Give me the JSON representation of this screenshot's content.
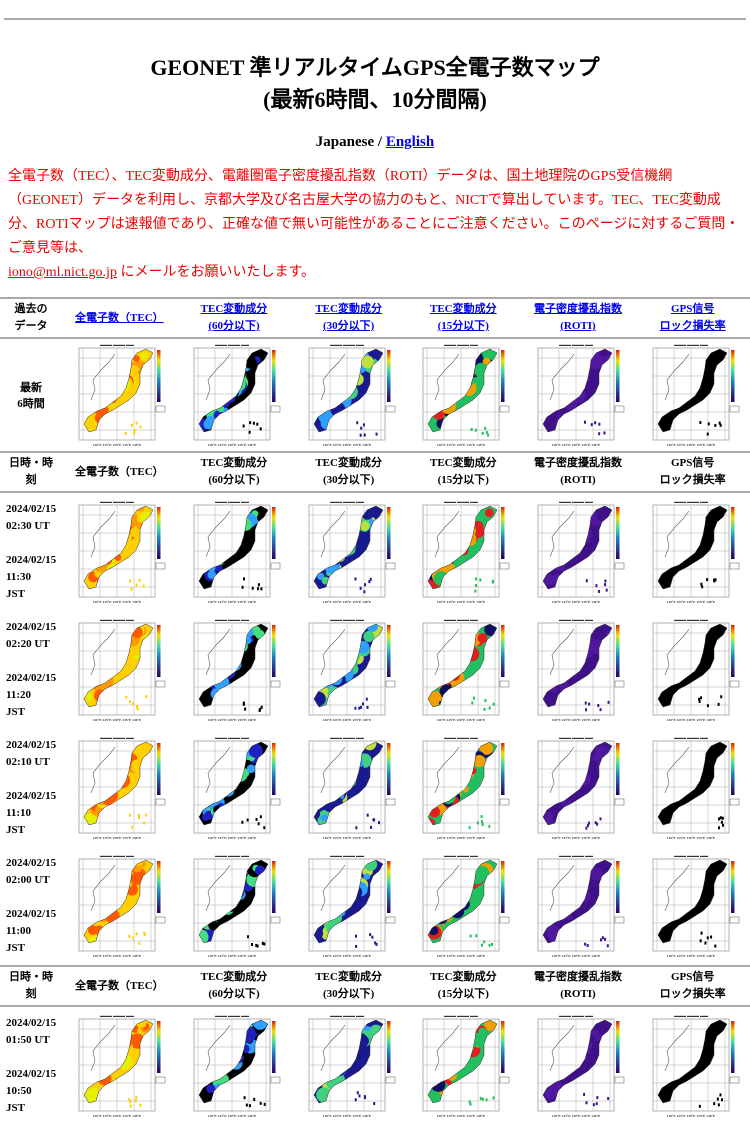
{
  "title": {
    "line1": "GEONET 準リアルタイムGPS全電子数マップ",
    "line2": "(最新6時間、10分間隔)"
  },
  "lang": {
    "japanese": "Japanese",
    "sep": " / ",
    "english": "English"
  },
  "notice": {
    "text": "全電子数（TEC）、TEC変動成分、電離圏電子密度擾乱指数（ROTI）データは、国土地理院のGPS受信機網（GEONET）データを利用し、京都大学及び名古屋大学の協力のもと、NICTで算出しています。TEC、TEC変動成分、ROTIマップは速報値であり、正確な値で無い可能性があることにご注意ください。このページに対するご質問・ご意見等は、",
    "email": "iono@ml.nict.go.jp",
    "suffix": " にメールをお願いいたします。"
  },
  "link_header": {
    "first": [
      "過去の",
      "データ"
    ],
    "cols": [
      [
        "全電子数（TEC）"
      ],
      [
        "TEC変動成分",
        "(60分以下)"
      ],
      [
        "TEC変動成分",
        "(30分以下)"
      ],
      [
        "TEC変動成分",
        "(15分以下)"
      ],
      [
        "電子密度擾乱指数",
        "(ROTI)"
      ],
      [
        "GPS信号",
        "ロック損失率"
      ]
    ]
  },
  "plain_header": {
    "first": [
      "日時・時",
      "刻"
    ],
    "cols": [
      [
        "全電子数（TEC）"
      ],
      [
        "TEC変動成分",
        "(60分以下)"
      ],
      [
        "TEC変動成分",
        "(30分以下)"
      ],
      [
        "TEC変動成分",
        "(15分以下)"
      ],
      [
        "電子密度擾乱指数",
        "(ROTI)"
      ],
      [
        "GPS信号",
        "ロック損失率"
      ]
    ]
  },
  "latest_label": [
    "最新",
    "6時間"
  ],
  "rows": [
    {
      "ut_date": "2024/02/15",
      "ut_time": "02:30 UT",
      "jst_date": "2024/02/15",
      "jst_time": "11:30",
      "jst": "JST"
    },
    {
      "ut_date": "2024/02/15",
      "ut_time": "02:20 UT",
      "jst_date": "2024/02/15",
      "jst_time": "11:20",
      "jst": "JST"
    },
    {
      "ut_date": "2024/02/15",
      "ut_time": "02:10 UT",
      "jst_date": "2024/02/15",
      "jst_time": "11:10",
      "jst": "JST"
    },
    {
      "ut_date": "2024/02/15",
      "ut_time": "02:00 UT",
      "jst_date": "2024/02/15",
      "jst_time": "11:00",
      "jst": "JST"
    },
    {
      "ut_date": "2024/02/15",
      "ut_time": "01:50 UT",
      "jst_date": "2024/02/15",
      "jst_time": "10:50",
      "jst": "JST"
    }
  ],
  "map_colors": {
    "tec": [
      "#ffd000",
      "#ff9a00",
      "#ff5a00",
      "#e4f000"
    ],
    "dtec60": [
      "#000000",
      "#2020c0",
      "#30a0ff",
      "#40e080"
    ],
    "dtec30": [
      "#1a1a90",
      "#30a0ff",
      "#40d080",
      "#c0e040"
    ],
    "dtec15": [
      "#20c060",
      "#e02020",
      "#f0a000",
      "#101060"
    ],
    "roti": [
      "#40108a",
      "#5018a0"
    ],
    "lol": [
      "#000000"
    ]
  }
}
